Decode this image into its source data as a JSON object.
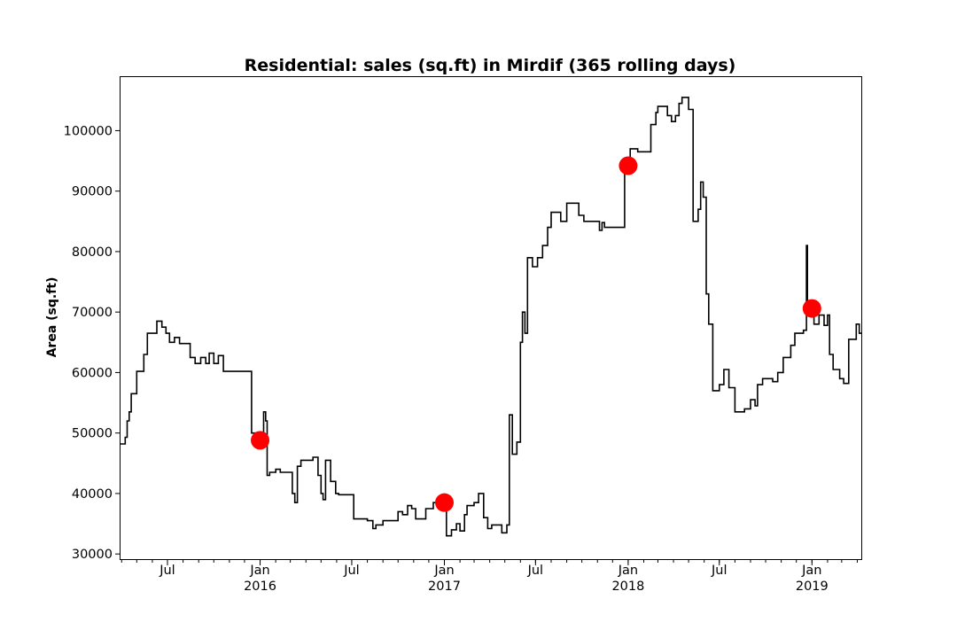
{
  "chart_data": {
    "type": "line",
    "title": "Residential: sales (sq.ft) in Mirdif (365 rolling days)",
    "xlabel": "",
    "ylabel": "Area (sq.ft)",
    "xlim": [
      "2015-03-28",
      "2019-04-09"
    ],
    "ylim": [
      29000,
      109000
    ],
    "yticks": [
      30000,
      40000,
      50000,
      60000,
      70000,
      80000,
      90000,
      100000
    ],
    "ytick_labels": [
      "30000",
      "40000",
      "50000",
      "60000",
      "70000",
      "80000",
      "90000",
      "100000"
    ],
    "xticks": [
      {
        "date": "2015-07-01",
        "label": "Jul",
        "year": ""
      },
      {
        "date": "2016-01-01",
        "label": "Jan",
        "year": "2016"
      },
      {
        "date": "2016-07-01",
        "label": "Jul",
        "year": ""
      },
      {
        "date": "2017-01-01",
        "label": "Jan",
        "year": "2017"
      },
      {
        "date": "2017-07-01",
        "label": "Jul",
        "year": ""
      },
      {
        "date": "2018-01-01",
        "label": "Jan",
        "year": "2018"
      },
      {
        "date": "2018-07-01",
        "label": "Jul",
        "year": ""
      },
      {
        "date": "2019-01-01",
        "label": "Jan",
        "year": "2019"
      }
    ],
    "grid": false,
    "line_color": "#000000",
    "marker_color": "#ff0000",
    "series": [
      {
        "style": "step",
        "points": [
          [
            "2015-03-28",
            48200
          ],
          [
            "2015-04-08",
            49300
          ],
          [
            "2015-04-12",
            52000
          ],
          [
            "2015-04-16",
            53500
          ],
          [
            "2015-04-20",
            56500
          ],
          [
            "2015-05-01",
            60200
          ],
          [
            "2015-05-15",
            63000
          ],
          [
            "2015-05-22",
            66500
          ],
          [
            "2015-06-10",
            68500
          ],
          [
            "2015-06-20",
            67500
          ],
          [
            "2015-06-28",
            66500
          ],
          [
            "2015-07-05",
            65000
          ],
          [
            "2015-07-15",
            65800
          ],
          [
            "2015-07-25",
            64800
          ],
          [
            "2015-08-15",
            62500
          ],
          [
            "2015-08-25",
            61500
          ],
          [
            "2015-09-05",
            62500
          ],
          [
            "2015-09-15",
            61500
          ],
          [
            "2015-09-22",
            63200
          ],
          [
            "2015-10-01",
            61500
          ],
          [
            "2015-10-10",
            62800
          ],
          [
            "2015-10-20",
            60200
          ],
          [
            "2015-12-15",
            50000
          ],
          [
            "2015-12-25",
            49800
          ],
          [
            "2016-01-05",
            48800
          ],
          [
            "2016-01-08",
            53500
          ],
          [
            "2016-01-12",
            52000
          ],
          [
            "2016-01-15",
            43000
          ],
          [
            "2016-01-20",
            43500
          ],
          [
            "2016-02-01",
            44000
          ],
          [
            "2016-02-10",
            43500
          ],
          [
            "2016-03-05",
            40000
          ],
          [
            "2016-03-10",
            38500
          ],
          [
            "2016-03-15",
            44500
          ],
          [
            "2016-03-22",
            45500
          ],
          [
            "2016-04-15",
            46000
          ],
          [
            "2016-04-25",
            43000
          ],
          [
            "2016-05-01",
            40000
          ],
          [
            "2016-05-05",
            39000
          ],
          [
            "2016-05-10",
            45500
          ],
          [
            "2016-05-20",
            42000
          ],
          [
            "2016-05-30",
            40000
          ],
          [
            "2016-06-05",
            39800
          ],
          [
            "2016-07-05",
            35800
          ],
          [
            "2016-08-01",
            35500
          ],
          [
            "2016-08-12",
            34200
          ],
          [
            "2016-08-18",
            34800
          ],
          [
            "2016-09-01",
            35500
          ],
          [
            "2016-10-01",
            37000
          ],
          [
            "2016-10-10",
            36500
          ],
          [
            "2016-10-20",
            38000
          ],
          [
            "2016-10-28",
            37500
          ],
          [
            "2016-11-05",
            35800
          ],
          [
            "2016-11-25",
            37500
          ],
          [
            "2016-12-10",
            38500
          ],
          [
            "2017-01-01",
            38500
          ],
          [
            "2017-01-05",
            33000
          ],
          [
            "2017-01-15",
            34000
          ],
          [
            "2017-01-25",
            35000
          ],
          [
            "2017-02-01",
            33800
          ],
          [
            "2017-02-10",
            36500
          ],
          [
            "2017-02-15",
            38000
          ],
          [
            "2017-03-01",
            38500
          ],
          [
            "2017-03-10",
            40000
          ],
          [
            "2017-03-20",
            36000
          ],
          [
            "2017-03-28",
            34200
          ],
          [
            "2017-04-05",
            34800
          ],
          [
            "2017-04-25",
            33500
          ],
          [
            "2017-05-05",
            34800
          ],
          [
            "2017-05-10",
            53000
          ],
          [
            "2017-05-16",
            46500
          ],
          [
            "2017-05-25",
            48500
          ],
          [
            "2017-06-01",
            65000
          ],
          [
            "2017-06-05",
            70000
          ],
          [
            "2017-06-10",
            66500
          ],
          [
            "2017-06-15",
            79000
          ],
          [
            "2017-06-25",
            77500
          ],
          [
            "2017-07-05",
            79000
          ],
          [
            "2017-07-15",
            81000
          ],
          [
            "2017-07-25",
            84000
          ],
          [
            "2017-08-01",
            86500
          ],
          [
            "2017-08-20",
            85000
          ],
          [
            "2017-09-01",
            88000
          ],
          [
            "2017-09-25",
            86000
          ],
          [
            "2017-10-05",
            85000
          ],
          [
            "2017-11-05",
            83500
          ],
          [
            "2017-11-10",
            84800
          ],
          [
            "2017-11-15",
            84000
          ],
          [
            "2017-12-25",
            94000
          ],
          [
            "2018-01-05",
            97000
          ],
          [
            "2018-01-20",
            96500
          ],
          [
            "2018-02-15",
            101000
          ],
          [
            "2018-02-25",
            103000
          ],
          [
            "2018-03-01",
            104000
          ],
          [
            "2018-03-20",
            102500
          ],
          [
            "2018-03-28",
            101500
          ],
          [
            "2018-04-05",
            102500
          ],
          [
            "2018-04-12",
            104500
          ],
          [
            "2018-04-18",
            105500
          ],
          [
            "2018-05-01",
            103500
          ],
          [
            "2018-05-10",
            85000
          ],
          [
            "2018-05-20",
            87000
          ],
          [
            "2018-05-25",
            91500
          ],
          [
            "2018-05-30",
            89000
          ],
          [
            "2018-06-05",
            73000
          ],
          [
            "2018-06-10",
            68000
          ],
          [
            "2018-06-18",
            57000
          ],
          [
            "2018-07-01",
            58000
          ],
          [
            "2018-07-10",
            60500
          ],
          [
            "2018-07-20",
            57500
          ],
          [
            "2018-08-01",
            53500
          ],
          [
            "2018-08-20",
            54000
          ],
          [
            "2018-09-01",
            55500
          ],
          [
            "2018-09-10",
            54500
          ],
          [
            "2018-09-15",
            58000
          ],
          [
            "2018-09-25",
            59000
          ],
          [
            "2018-10-15",
            58500
          ],
          [
            "2018-10-25",
            60000
          ],
          [
            "2018-11-05",
            62500
          ],
          [
            "2018-11-20",
            64500
          ],
          [
            "2018-11-28",
            66500
          ],
          [
            "2018-12-15",
            67000
          ],
          [
            "2018-12-21",
            81000
          ],
          [
            "2018-12-23",
            70500
          ],
          [
            "2019-01-05",
            68000
          ],
          [
            "2019-01-15",
            69500
          ],
          [
            "2019-01-25",
            67800
          ],
          [
            "2019-02-01",
            69500
          ],
          [
            "2019-02-05",
            63000
          ],
          [
            "2019-02-12",
            60500
          ],
          [
            "2019-02-25",
            59000
          ],
          [
            "2019-03-05",
            58200
          ],
          [
            "2019-03-15",
            65500
          ],
          [
            "2019-03-30",
            68000
          ],
          [
            "2019-04-05",
            66500
          ],
          [
            "2019-04-09",
            66500
          ]
        ]
      }
    ],
    "highlights": [
      {
        "date": "2016-01-01",
        "value": 48800
      },
      {
        "date": "2017-01-01",
        "value": 38500
      },
      {
        "date": "2018-01-01",
        "value": 94200
      },
      {
        "date": "2019-01-01",
        "value": 70600
      }
    ]
  }
}
